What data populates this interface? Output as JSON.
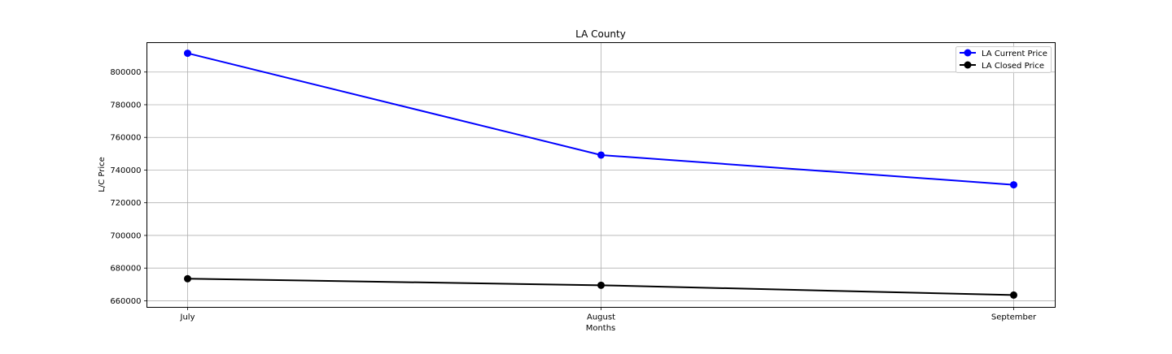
{
  "chart_data": {
    "type": "line",
    "title": "LA County",
    "xlabel": "Months",
    "ylabel": "L/C Price",
    "categories": [
      "July",
      "August",
      "September"
    ],
    "ylim": [
      656000,
      818000
    ],
    "yticks": [
      660000,
      680000,
      700000,
      720000,
      740000,
      760000,
      780000,
      800000
    ],
    "grid": true,
    "legend_position": "top-right",
    "series": [
      {
        "name": "LA Current Price",
        "color": "#0000ff",
        "marker": "circle",
        "values": [
          811500,
          749200,
          731000
        ]
      },
      {
        "name": "LA Closed Price",
        "color": "#000000",
        "marker": "circle",
        "values": [
          673500,
          669500,
          663500
        ]
      }
    ]
  }
}
